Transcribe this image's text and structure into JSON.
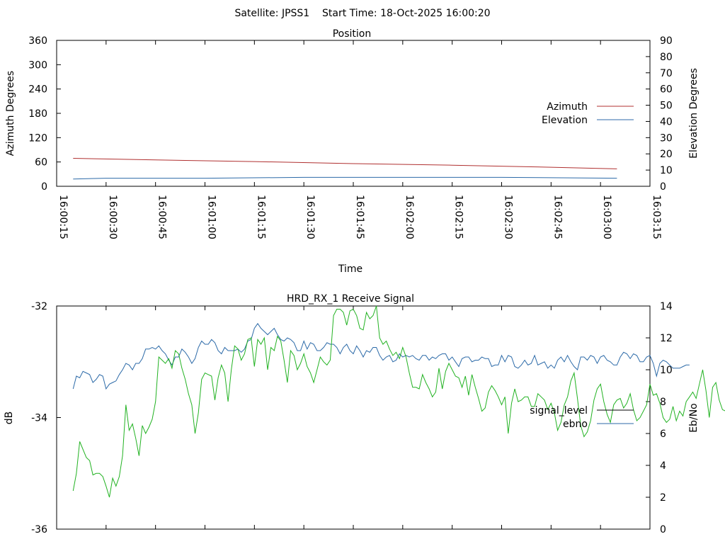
{
  "header": "Satellite: JPSS1    Start Time: 18-Oct-2025 16:00:20",
  "chart_data": [
    {
      "type": "line",
      "title": "Position",
      "xlabel": "Time",
      "ylabel_left": "Azimuth Degrees",
      "ylabel_right": "Elevation Degrees",
      "x_ticks": [
        "16:00:15",
        "16:00:30",
        "16:00:45",
        "16:01:00",
        "16:01:15",
        "16:01:30",
        "16:01:45",
        "16:02:00",
        "16:02:15",
        "16:02:30",
        "16:02:45",
        "16:03:00",
        "16:03:15"
      ],
      "ylim_left": [
        0,
        360
      ],
      "yticks_left": [
        "0",
        "60",
        "120",
        "180",
        "240",
        "300",
        "360"
      ],
      "ylim_right": [
        0,
        90
      ],
      "yticks_right": [
        "0",
        "10",
        "20",
        "30",
        "40",
        "50",
        "60",
        "70",
        "80",
        "90"
      ],
      "legend_position": "right",
      "series": [
        {
          "name": "Azimuth",
          "axis": "left",
          "color": "#b03030",
          "x": [
            "16:00:20",
            "16:00:45",
            "16:01:15",
            "16:01:45",
            "16:02:15",
            "16:02:45",
            "16:03:05"
          ],
          "values": [
            69,
            65,
            61,
            56,
            52,
            47,
            43
          ]
        },
        {
          "name": "Elevation",
          "axis": "right",
          "color": "#2c6aa8",
          "x": [
            "16:00:20",
            "16:00:30",
            "16:01:00",
            "16:01:30",
            "16:02:00",
            "16:02:30",
            "16:03:05"
          ],
          "values": [
            4.5,
            5,
            5,
            5.5,
            5.5,
            5.5,
            5
          ]
        }
      ]
    },
    {
      "type": "line",
      "title": "HRD_RX_1 Receive Signal",
      "ylabel_left": "dB",
      "ylabel_right": "Eb/No",
      "ylim_left": [
        -36,
        -32
      ],
      "yticks_left": [
        "-36",
        "-34",
        "-32"
      ],
      "ylim_right": [
        0,
        14
      ],
      "yticks_right": [
        "0",
        "2",
        "4",
        "6",
        "8",
        "10",
        "12",
        "14"
      ],
      "legend_position": "right",
      "x_start": "16:00:20",
      "x_step_seconds": 1,
      "series": [
        {
          "name": "signal_level",
          "axis": "left",
          "color": "#000000",
          "values": []
        },
        {
          "name": "ebno",
          "axis": "right",
          "color": "#2c6aa8",
          "values": [
            8.8,
            9.6,
            9.5,
            9.9,
            9.8,
            9.7,
            9.2,
            9.4,
            9.7,
            9.6,
            8.8,
            9.1,
            9.2,
            9.3,
            9.7,
            10.0,
            10.4,
            10.3,
            10.0,
            10.4,
            10.4,
            10.7,
            11.3,
            11.3,
            11.4,
            11.3,
            11.5,
            11.2,
            11.0,
            10.6,
            10.3,
            10.8,
            10.8,
            11.3,
            11.1,
            10.8,
            10.4,
            10.7,
            11.4,
            11.8,
            11.6,
            11.6,
            11.9,
            11.7,
            11.2,
            11.0,
            11.4,
            11.2,
            11.2,
            11.2,
            11.3,
            11.1,
            11.3,
            11.8,
            11.9,
            12.6,
            12.9,
            12.6,
            12.4,
            12.2,
            12.4,
            12.6,
            12.2,
            11.9,
            11.8,
            12.0,
            11.9,
            11.7,
            11.2,
            11.2,
            11.8,
            11.3,
            11.7,
            11.6,
            11.2,
            11.2,
            11.4,
            11.7,
            11.6,
            11.6,
            11.4,
            11.0,
            11.4,
            11.6,
            11.2,
            11.0,
            11.5,
            11.2,
            10.8,
            11.2,
            11.1,
            11.4,
            11.4,
            10.9,
            10.6,
            10.8,
            10.9,
            10.5,
            10.6,
            11.0,
            10.8,
            10.9,
            10.8,
            10.9,
            10.7,
            10.6,
            10.9,
            10.9,
            10.6,
            10.8,
            10.7,
            10.9,
            11.0,
            11.0,
            10.6,
            10.8,
            10.5,
            10.2,
            10.7,
            10.8,
            10.8,
            10.5,
            10.6,
            10.6,
            10.8,
            10.7,
            10.7,
            10.2,
            10.3,
            10.3,
            10.9,
            10.5,
            10.9,
            10.8,
            10.2,
            10.1,
            10.3,
            10.6,
            10.3,
            10.4,
            10.9,
            10.3,
            10.4,
            10.5,
            10.1,
            10.3,
            10.1,
            10.6,
            10.8,
            10.5,
            10.9,
            10.5,
            10.2,
            10.0,
            10.8,
            10.8,
            10.6,
            10.9,
            10.8,
            10.4,
            10.8,
            10.9,
            10.6,
            10.5,
            10.3,
            10.3,
            10.8,
            11.1,
            11.0,
            10.7,
            11.0,
            10.9,
            10.5,
            10.5,
            10.8,
            10.9,
            10.4,
            9.6,
            10.4,
            10.6,
            10.5,
            10.3,
            10.1,
            10.1,
            10.1,
            10.2,
            10.3,
            10.3
          ]
        },
        {
          "name": "",
          "axis": "right",
          "color": "#22b222",
          "values": [
            2.4,
            3.5,
            5.5,
            5.0,
            4.5,
            4.3,
            3.4,
            3.5,
            3.5,
            3.3,
            2.7,
            2.0,
            3.2,
            2.7,
            3.3,
            4.6,
            7.8,
            6.2,
            6.6,
            5.7,
            4.6,
            6.5,
            6.0,
            6.4,
            6.9,
            8.0,
            10.8,
            10.6,
            10.4,
            10.7,
            10.1,
            11.2,
            11.0,
            10.1,
            9.4,
            8.5,
            7.8,
            6.0,
            7.3,
            9.4,
            9.8,
            9.7,
            9.6,
            8.1,
            9.5,
            10.3,
            9.8,
            8.0,
            10.0,
            11.5,
            11.3,
            10.6,
            11.0,
            11.9,
            12.0,
            10.2,
            11.9,
            11.6,
            12.0,
            10.0,
            11.4,
            11.2,
            12.1,
            11.8,
            10.6,
            9.2,
            11.2,
            10.9,
            10.0,
            10.4,
            11.0,
            10.2,
            9.8,
            9.2,
            10.0,
            10.8,
            10.5,
            10.3,
            10.6,
            13.4,
            13.8,
            13.8,
            13.6,
            12.8,
            13.7,
            13.8,
            13.4,
            12.6,
            12.5,
            13.6,
            13.2,
            13.4,
            14.0,
            12.0,
            11.6,
            11.8,
            11.3,
            10.9,
            11.1,
            10.7,
            11.4,
            10.8,
            9.8,
            8.9,
            8.9,
            8.8,
            9.7,
            9.2,
            8.8,
            8.3,
            8.6,
            10.1,
            8.8,
            9.9,
            10.4,
            10.0,
            9.6,
            9.5,
            8.9,
            9.6,
            8.4,
            9.7,
            8.9,
            8.2,
            7.4,
            7.6,
            8.6,
            9.0,
            8.7,
            8.3,
            7.8,
            8.3,
            6.0,
            7.9,
            8.8,
            8.0,
            8.1,
            8.3,
            8.3,
            7.7,
            7.7,
            8.5,
            8.3,
            8.1,
            7.5,
            7.9,
            7.3,
            6.2,
            6.7,
            7.8,
            8.3,
            9.3,
            9.8,
            8.2,
            6.5,
            5.8,
            6.1,
            6.8,
            8.1,
            8.8,
            9.1,
            8.0,
            7.2,
            6.7,
            7.8,
            8.1,
            8.2,
            7.6,
            7.9,
            8.5,
            7.5,
            6.8,
            7.0,
            7.4,
            7.8,
            9.1,
            8.4,
            8.5,
            7.9,
            7.0,
            6.7,
            6.9,
            7.7,
            6.8,
            7.4,
            7.1,
            8.0,
            8.3,
            8.6,
            8.2,
            9.1,
            10.0,
            8.7,
            7.0,
            8.9,
            9.2,
            8.1,
            7.5,
            7.4,
            6.8,
            7.3,
            5.3,
            7.0,
            8.3,
            7.4,
            7.0,
            6.8,
            6.6,
            7.0,
            6.5,
            6.0,
            6.8,
            6.8,
            6.2,
            6.5,
            6.9,
            7.0,
            6.7,
            7.0,
            6.3,
            6.6,
            7.0
          ]
        }
      ]
    }
  ]
}
